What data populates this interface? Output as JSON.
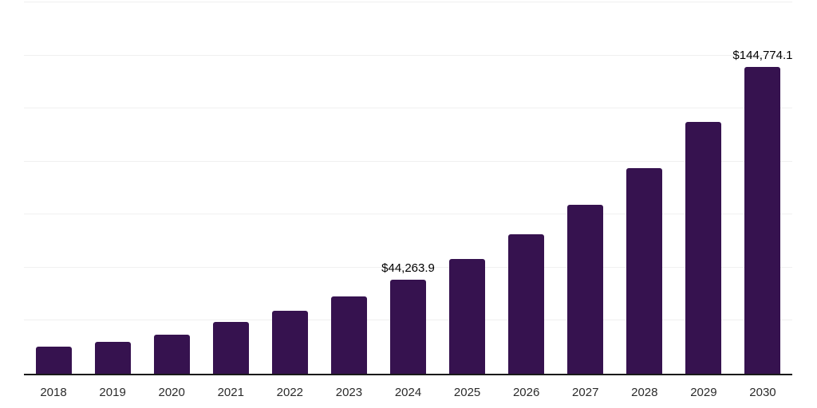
{
  "chart_data": {
    "type": "bar",
    "title": "",
    "xlabel": "",
    "ylabel": "",
    "categories": [
      "2018",
      "2019",
      "2020",
      "2021",
      "2022",
      "2023",
      "2024",
      "2025",
      "2026",
      "2027",
      "2028",
      "2029",
      "2030"
    ],
    "values": [
      12700,
      15000,
      18500,
      24300,
      29700,
      36400,
      44263.9,
      53900,
      65900,
      79700,
      97000,
      118600,
      144774.1
    ],
    "data_labels": {
      "2024": "$44,263.9",
      "2030": "$144,774.1"
    },
    "ylim": [
      0,
      175000
    ],
    "grid_step": 25000,
    "grid": true,
    "legend": false,
    "y_axis_ticks_visible": false
  },
  "style": {
    "bar_color": "#36124f",
    "grid_color": "#f0f0f0",
    "axis_color": "#1a1a1a",
    "data_label_color": "#000000",
    "tick_label_color": "#2b2b2b",
    "background": "#ffffff"
  }
}
